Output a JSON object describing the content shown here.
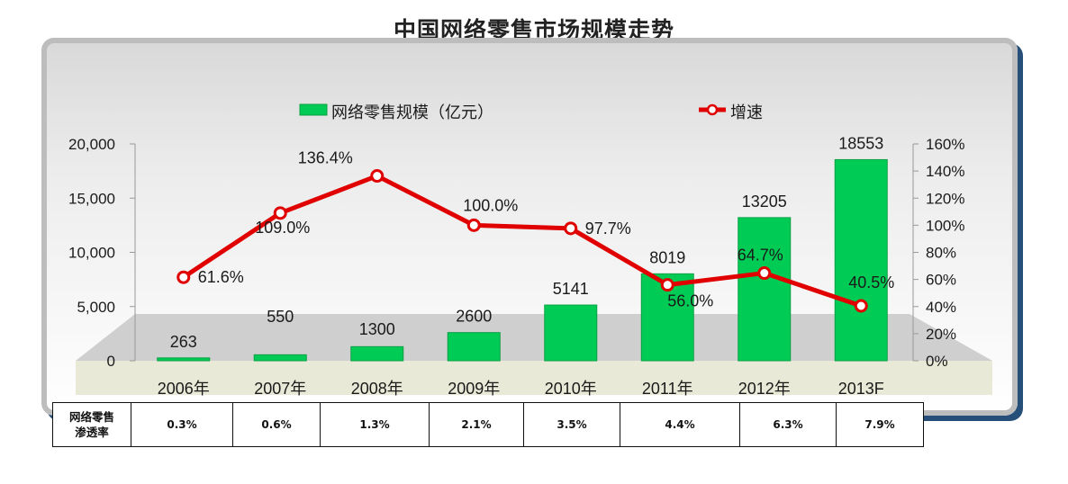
{
  "title": "中国网络零售市场规模走势",
  "legend": {
    "bar_label": "网络零售规模（亿元）",
    "line_label": "增速"
  },
  "colors": {
    "bar": "#00cc55",
    "bar_edge": "#08a043",
    "line": "#e00000",
    "marker_fill": "#ffffff",
    "panel_border": "#264f7a"
  },
  "chart_data": {
    "type": "bar",
    "categories": [
      "2006年",
      "2007年",
      "2008年",
      "2009年",
      "2010年",
      "2011年",
      "2012年",
      "2013F"
    ],
    "series": [
      {
        "name": "网络零售规模（亿元）",
        "type": "bar",
        "axis": "left",
        "values": [
          263,
          550,
          1300,
          2600,
          5141,
          8019,
          13205,
          18553
        ]
      },
      {
        "name": "增速",
        "type": "line",
        "axis": "right",
        "values": [
          61.6,
          109.0,
          136.4,
          100.0,
          97.7,
          56.0,
          64.7,
          40.5
        ]
      }
    ],
    "data_labels_bar": [
      "263",
      "550",
      "1300",
      "2600",
      "5141",
      "8019",
      "13205",
      "18553"
    ],
    "data_labels_line": [
      "61.6%",
      "109.0%",
      "136.4%",
      "100.0%",
      "97.7%",
      "56.0%",
      "64.7%",
      "40.5%"
    ],
    "y_left": {
      "ylim": [
        0,
        20000
      ],
      "ticks": [
        "0",
        "5,000",
        "10,000",
        "15,000",
        "20,000"
      ]
    },
    "y_right": {
      "ylim": [
        0,
        160
      ],
      "ticks": [
        "0%",
        "20%",
        "40%",
        "60%",
        "80%",
        "100%",
        "120%",
        "140%",
        "160%"
      ]
    },
    "grid": false,
    "legend_position": "top"
  },
  "penetration_table": {
    "header_line1": "网络零售",
    "header_line2": "渗透率",
    "values": [
      "0.3%",
      "0.6%",
      "1.3%",
      "2.1%",
      "3.5%",
      "4.4%",
      "6.3%",
      "7.9%"
    ]
  }
}
